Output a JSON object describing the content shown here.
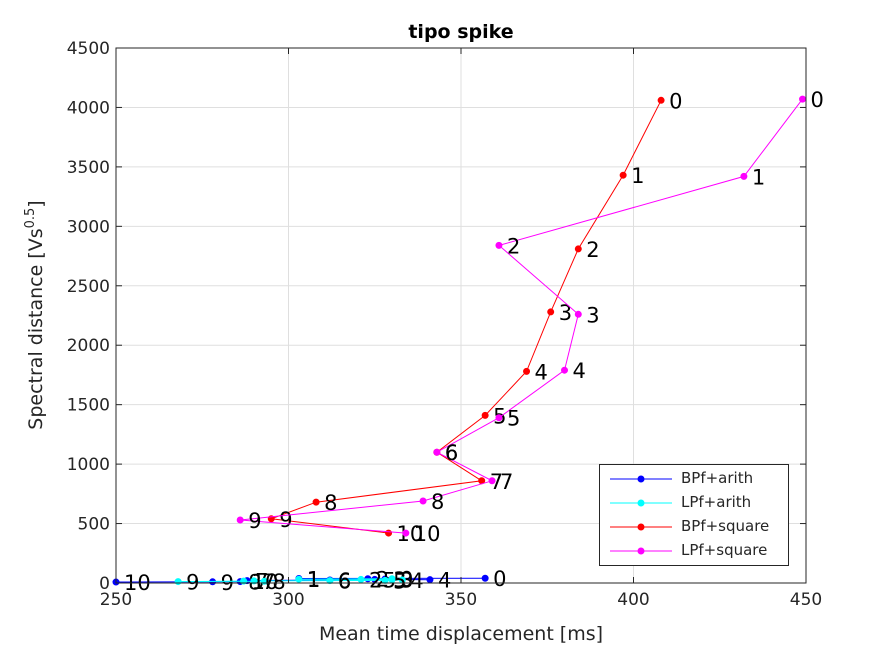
{
  "chart_data": {
    "type": "line",
    "title": "tipo spike",
    "xlabel": "Mean time displacement [ms]",
    "ylabel_main": "Spectral distance [Vs",
    "ylabel_sup": "0.5",
    "ylabel_tail": "]",
    "xlim": [
      250,
      450
    ],
    "ylim": [
      0,
      4500
    ],
    "xticks": [
      250,
      300,
      350,
      400,
      450
    ],
    "yticks": [
      0,
      500,
      1000,
      1500,
      2000,
      2500,
      3000,
      3500,
      4000,
      4500
    ],
    "grid": true,
    "legend_position": "bottom-right",
    "series": [
      {
        "name": "BPf+arith",
        "color": "#0000ff",
        "points": [
          {
            "x": 357,
            "y": 40,
            "label": "0"
          },
          {
            "x": 303,
            "y": 38,
            "label": "1"
          },
          {
            "x": 323,
            "y": 36,
            "label": "2"
          },
          {
            "x": 328,
            "y": 34,
            "label": "3"
          },
          {
            "x": 341,
            "y": 28,
            "label": "4"
          },
          {
            "x": 325,
            "y": 30,
            "label": "5"
          },
          {
            "x": 312,
            "y": 25,
            "label": "6"
          },
          {
            "x": 288,
            "y": 20,
            "label": "7"
          },
          {
            "x": 286,
            "y": 12,
            "label": "8"
          },
          {
            "x": 278,
            "y": 10,
            "label": "9"
          },
          {
            "x": 250,
            "y": 8,
            "label": "10"
          }
        ]
      },
      {
        "name": "LPf+arith",
        "color": "#00ffff",
        "points": [
          {
            "x": 330,
            "y": 36,
            "label": "0"
          },
          {
            "x": 303,
            "y": 32,
            "label": "1"
          },
          {
            "x": 321,
            "y": 30,
            "label": "2"
          },
          {
            "x": 330,
            "y": 28,
            "label": "3"
          },
          {
            "x": 333,
            "y": 25,
            "label": "4"
          },
          {
            "x": 328,
            "y": 22,
            "label": "5"
          },
          {
            "x": 312,
            "y": 20,
            "label": "6"
          },
          {
            "x": 290,
            "y": 18,
            "label": "7"
          },
          {
            "x": 293,
            "y": 15,
            "label": "8"
          },
          {
            "x": 268,
            "y": 12,
            "label": "9"
          },
          {
            "x": 287,
            "y": 16,
            "label": "10"
          }
        ]
      },
      {
        "name": "BPf+square",
        "color": "#ff0000",
        "points": [
          {
            "x": 408,
            "y": 4060,
            "label": "0"
          },
          {
            "x": 397,
            "y": 3430,
            "label": "1"
          },
          {
            "x": 384,
            "y": 2810,
            "label": "2"
          },
          {
            "x": 376,
            "y": 2280,
            "label": "3"
          },
          {
            "x": 369,
            "y": 1780,
            "label": "4"
          },
          {
            "x": 357,
            "y": 1410,
            "label": "5"
          },
          {
            "x": 343,
            "y": 1100,
            "label": "6"
          },
          {
            "x": 356,
            "y": 860,
            "label": "7"
          },
          {
            "x": 308,
            "y": 680,
            "label": "8"
          },
          {
            "x": 295,
            "y": 540,
            "label": "9"
          },
          {
            "x": 329,
            "y": 420,
            "label": "10"
          }
        ]
      },
      {
        "name": "LPf+square",
        "color": "#ff00ff",
        "points": [
          {
            "x": 449,
            "y": 4070,
            "label": "0"
          },
          {
            "x": 432,
            "y": 3420,
            "label": "1"
          },
          {
            "x": 361,
            "y": 2840,
            "label": "2"
          },
          {
            "x": 384,
            "y": 2260,
            "label": "3"
          },
          {
            "x": 380,
            "y": 1790,
            "label": "4"
          },
          {
            "x": 361,
            "y": 1390,
            "label": "5"
          },
          {
            "x": 343,
            "y": 1100,
            "label": "6"
          },
          {
            "x": 359,
            "y": 860,
            "label": "7"
          },
          {
            "x": 339,
            "y": 690,
            "label": "8"
          },
          {
            "x": 286,
            "y": 530,
            "label": "9"
          },
          {
            "x": 334,
            "y": 420,
            "label": "10"
          }
        ]
      }
    ]
  }
}
